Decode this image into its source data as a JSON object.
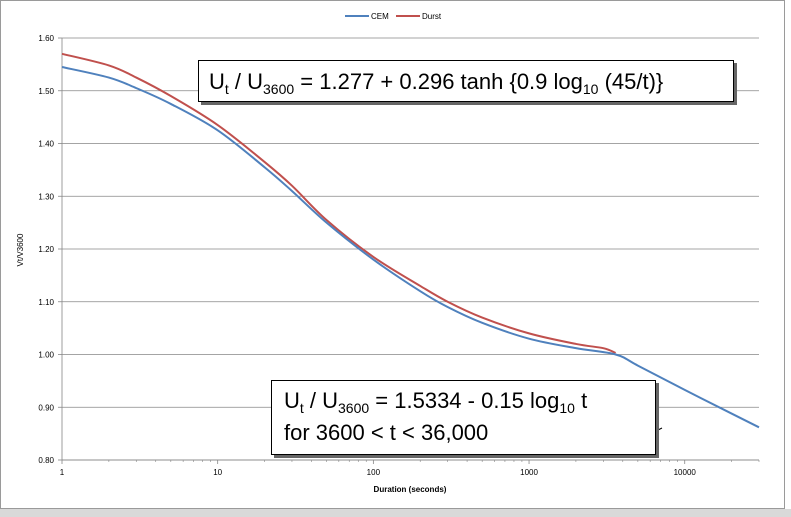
{
  "chart_data": {
    "type": "line",
    "xscale": "log",
    "xlim": [
      1,
      30000
    ],
    "ylim": [
      0.8,
      1.6
    ],
    "xlabel": "Duration (seconds)",
    "ylabel": "Vt/V3600",
    "legend_position": "top-center",
    "grid": "horizontal",
    "x_tick_labels": [
      "1",
      "10",
      "100",
      "1000",
      "10000"
    ],
    "x_tick_values": [
      1,
      10,
      100,
      1000,
      10000
    ],
    "y_tick_labels": [
      "0.80",
      "0.90",
      "1.00",
      "1.10",
      "1.20",
      "1.30",
      "1.40",
      "1.50",
      "1.60"
    ],
    "y_tick_values": [
      0.8,
      0.9,
      1.0,
      1.1,
      1.2,
      1.3,
      1.4,
      1.5,
      1.6
    ],
    "series": [
      {
        "name": "CEM",
        "color": "#4f81bd",
        "x": [
          1,
          2,
          3,
          5,
          10,
          20,
          30,
          50,
          100,
          200,
          300,
          500,
          1000,
          2000,
          3600,
          5000,
          10000,
          20000,
          30000
        ],
        "y": [
          1.545,
          1.525,
          1.505,
          1.475,
          1.425,
          1.355,
          1.31,
          1.25,
          1.18,
          1.12,
          1.09,
          1.06,
          1.03,
          1.012,
          1.0,
          0.979,
          0.933,
          0.888,
          0.862
        ]
      },
      {
        "name": "Durst",
        "color": "#c0504d",
        "x": [
          1,
          2,
          3,
          5,
          10,
          20,
          30,
          50,
          100,
          200,
          300,
          500,
          1000,
          2000,
          3000,
          3600
        ],
        "y": [
          1.57,
          1.548,
          1.525,
          1.49,
          1.435,
          1.365,
          1.32,
          1.255,
          1.185,
          1.13,
          1.1,
          1.07,
          1.04,
          1.02,
          1.012,
          1.003
        ]
      }
    ],
    "annotations": [
      {
        "id": "eq1",
        "base": "U",
        "sub1": "t",
        "mid": " / U",
        "sub2": "3600",
        "rest": " = 1.277 + 0.296 tanh {0.9 log",
        "sub3": "10",
        "tail": " (45/t)}"
      },
      {
        "id": "eq2",
        "base": "U",
        "sub1": "t",
        "mid": " / U",
        "sub2": "3600",
        "rest": " = 1.5334 - 0.15 log",
        "sub3": "10",
        "tail": " t",
        "line2": "for 3600 < t < 36,000"
      }
    ]
  }
}
